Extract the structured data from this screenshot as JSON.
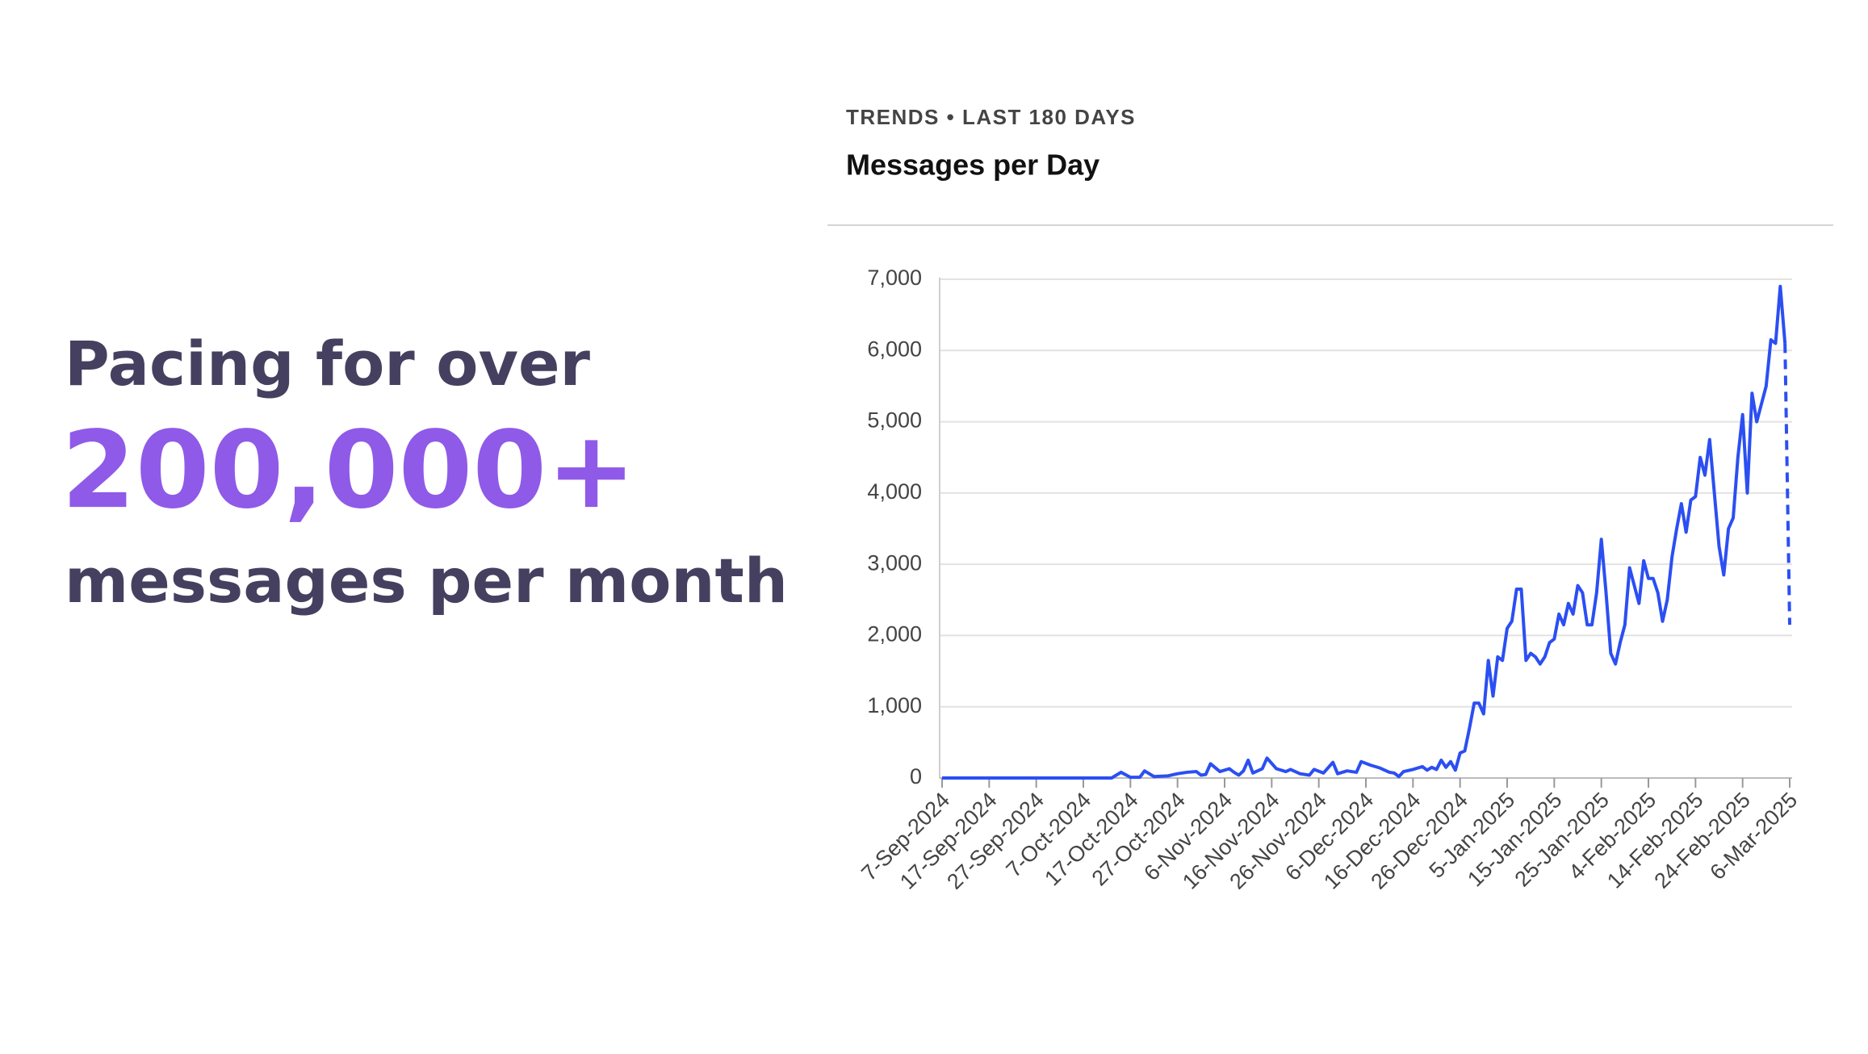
{
  "slide": {
    "line1": "Pacing for over",
    "highlight": "200,000+",
    "line3": "messages per month"
  },
  "chart_data": {
    "type": "line",
    "eyebrow": "TRENDS • LAST 180 DAYS",
    "title": "Messages per Day",
    "x": [
      "2024-09-07",
      "2024-09-17",
      "2024-09-27",
      "2024-10-07",
      "2024-10-13",
      "2024-10-15",
      "2024-10-17",
      "2024-10-19",
      "2024-10-20",
      "2024-10-22",
      "2024-10-25",
      "2024-10-27",
      "2024-10-29",
      "2024-10-31",
      "2024-11-01",
      "2024-11-02",
      "2024-11-03",
      "2024-11-05",
      "2024-11-07",
      "2024-11-08",
      "2024-11-09",
      "2024-11-10",
      "2024-11-11",
      "2024-11-12",
      "2024-11-14",
      "2024-11-15",
      "2024-11-17",
      "2024-11-19",
      "2024-11-20",
      "2024-11-22",
      "2024-11-24",
      "2024-11-25",
      "2024-11-27",
      "2024-11-29",
      "2024-11-30",
      "2024-12-02",
      "2024-12-04",
      "2024-12-05",
      "2024-12-07",
      "2024-12-09",
      "2024-12-11",
      "2024-12-12",
      "2024-12-13",
      "2024-12-14",
      "2024-12-16",
      "2024-12-18",
      "2024-12-19",
      "2024-12-20",
      "2024-12-21",
      "2024-12-22",
      "2024-12-23",
      "2024-12-24",
      "2024-12-25",
      "2024-12-26",
      "2024-12-27",
      "2024-12-28",
      "2024-12-29",
      "2024-12-30",
      "2024-12-31",
      "2025-01-01",
      "2025-01-02",
      "2025-01-03",
      "2025-01-04",
      "2025-01-05",
      "2025-01-06",
      "2025-01-07",
      "2025-01-08",
      "2025-01-09",
      "2025-01-10",
      "2025-01-11",
      "2025-01-12",
      "2025-01-13",
      "2025-01-14",
      "2025-01-15",
      "2025-01-16",
      "2025-01-17",
      "2025-01-18",
      "2025-01-19",
      "2025-01-20",
      "2025-01-21",
      "2025-01-22",
      "2025-01-23",
      "2025-01-24",
      "2025-01-25",
      "2025-01-26",
      "2025-01-27",
      "2025-01-28",
      "2025-01-29",
      "2025-01-30",
      "2025-01-31",
      "2025-02-01",
      "2025-02-02",
      "2025-02-03",
      "2025-02-04",
      "2025-02-05",
      "2025-02-06",
      "2025-02-07",
      "2025-02-08",
      "2025-02-09",
      "2025-02-10",
      "2025-02-11",
      "2025-02-12",
      "2025-02-13",
      "2025-02-14",
      "2025-02-15",
      "2025-02-16",
      "2025-02-17",
      "2025-02-18",
      "2025-02-19",
      "2025-02-20",
      "2025-02-21",
      "2025-02-22",
      "2025-02-23",
      "2025-02-24",
      "2025-02-25",
      "2025-02-26",
      "2025-02-27",
      "2025-02-28",
      "2025-03-01",
      "2025-03-02",
      "2025-03-03",
      "2025-03-04",
      "2025-03-05",
      "2025-03-06"
    ],
    "values": [
      0,
      0,
      0,
      0,
      0,
      80,
      10,
      10,
      100,
      20,
      30,
      60,
      80,
      90,
      40,
      50,
      200,
      90,
      130,
      80,
      40,
      100,
      250,
      70,
      130,
      280,
      130,
      90,
      120,
      60,
      40,
      120,
      70,
      220,
      60,
      100,
      80,
      230,
      180,
      140,
      80,
      70,
      20,
      90,
      120,
      160,
      110,
      150,
      120,
      250,
      150,
      230,
      110,
      350,
      380,
      700,
      1050,
      1050,
      900,
      1650,
      1150,
      1700,
      1650,
      2100,
      2200,
      2650,
      2650,
      1650,
      1750,
      1700,
      1600,
      1700,
      1900,
      1950,
      2300,
      2150,
      2450,
      2300,
      2700,
      2600,
      2150,
      2150,
      2600,
      3350,
      2600,
      1750,
      1600,
      1900,
      2150,
      2950,
      2700,
      2450,
      3050,
      2800,
      2800,
      2600,
      2200,
      2500,
      3100,
      3500,
      3850,
      3450,
      3900,
      3950,
      4500,
      4250,
      4750,
      4000,
      3250,
      2850,
      3500,
      3650,
      4500,
      5100,
      4000,
      5400,
      5000,
      5250,
      5500,
      6150,
      6100,
      6900,
      6100,
      2150
    ],
    "color": "#2b4ff2",
    "dashed_last_segment": true,
    "xlim": [
      "2024-09-07",
      "2025-03-06"
    ],
    "xticks": [
      {
        "value": "2024-09-07",
        "label": "7-Sep-2024"
      },
      {
        "value": "2024-09-17",
        "label": "17-Sep-2024"
      },
      {
        "value": "2024-09-27",
        "label": "27-Sep-2024"
      },
      {
        "value": "2024-10-07",
        "label": "7-Oct-2024"
      },
      {
        "value": "2024-10-17",
        "label": "17-Oct-2024"
      },
      {
        "value": "2024-10-27",
        "label": "27-Oct-2024"
      },
      {
        "value": "2024-11-06",
        "label": "6-Nov-2024"
      },
      {
        "value": "2024-11-16",
        "label": "16-Nov-2024"
      },
      {
        "value": "2024-11-26",
        "label": "26-Nov-2024"
      },
      {
        "value": "2024-12-06",
        "label": "6-Dec-2024"
      },
      {
        "value": "2024-12-16",
        "label": "16-Dec-2024"
      },
      {
        "value": "2024-12-26",
        "label": "26-Dec-2024"
      },
      {
        "value": "2025-01-05",
        "label": "5-Jan-2025"
      },
      {
        "value": "2025-01-15",
        "label": "15-Jan-2025"
      },
      {
        "value": "2025-01-25",
        "label": "25-Jan-2025"
      },
      {
        "value": "2025-02-04",
        "label": "4-Feb-2025"
      },
      {
        "value": "2025-02-14",
        "label": "14-Feb-2025"
      },
      {
        "value": "2025-02-24",
        "label": "24-Feb-2025"
      },
      {
        "value": "2025-03-06",
        "label": "6-Mar-2025"
      }
    ],
    "ylim": [
      0,
      7000
    ],
    "yticks": [
      0,
      {
        "value": 1000,
        "label": "1,000"
      },
      {
        "value": 2000,
        "label": "2,000"
      },
      {
        "value": 3000,
        "label": "3,000"
      },
      {
        "value": 4000,
        "label": "4,000"
      },
      {
        "value": 5000,
        "label": "5,000"
      },
      {
        "value": 6000,
        "label": "6,000"
      },
      {
        "value": 7000,
        "label": "7,000"
      }
    ],
    "grid": true
  }
}
